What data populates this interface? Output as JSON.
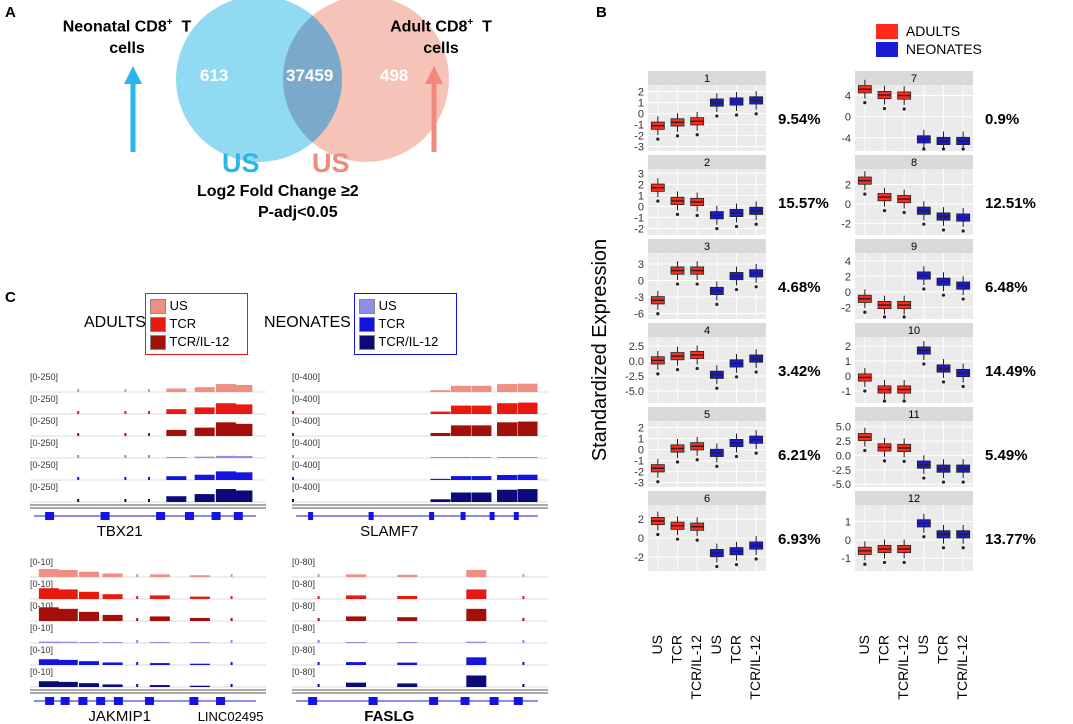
{
  "panels": {
    "a": "A",
    "b": "B",
    "c": "C"
  },
  "venn": {
    "left_label_line1": "Neonatal CD8",
    "left_label_sup": "+",
    "left_label_t": "T",
    "left_label_line2": "cells",
    "right_label_line1": "Adult CD8",
    "right_label_sup": "+",
    "right_label_t": "T",
    "right_label_line2": "cells",
    "left_only": "613",
    "overlap": "37459",
    "right_only": "498",
    "left_condition": "US",
    "right_condition": "US",
    "criteria_line1": "Log2 Fold Change ≥2",
    "criteria_line2": "P-adj<0.05",
    "colors": {
      "left": "#7dd3f0",
      "right": "#f5b8ad",
      "overlap": "#7aa9c9",
      "left_text": "#29b6e8",
      "right_text": "#f08a7c"
    }
  },
  "legend_b": {
    "adults": "ADULTS",
    "neonates": "NEONATES",
    "adults_color": "#ff2a1a",
    "neonates_color": "#1a1ad6"
  },
  "ylabel": "Standardized Expression",
  "x_categories": [
    "US",
    "TCR",
    "TCR/IL-12",
    "US",
    "TCR",
    "TCR/IL-12"
  ],
  "clusters": [
    {
      "id": "1",
      "pct": "9.54%",
      "yticks": [
        "2",
        "1",
        "0",
        "-1",
        "-2",
        "-3"
      ],
      "yrange": [
        2.6,
        -3.4
      ],
      "medians": [
        -1.1,
        -0.8,
        -0.7,
        1.0,
        1.1,
        1.2
      ]
    },
    {
      "id": "2",
      "pct": "15.57%",
      "yticks": [
        "3",
        "2",
        "1",
        "0",
        "-1",
        "-2"
      ],
      "yrange": [
        3.4,
        -2.6
      ],
      "medians": [
        1.7,
        0.5,
        0.4,
        -0.8,
        -0.6,
        -0.4
      ]
    },
    {
      "id": "3",
      "pct": "4.68%",
      "yticks": [
        "3",
        "0",
        "-3",
        "-6"
      ],
      "yrange": [
        5.0,
        -7.0
      ],
      "medians": [
        -3.6,
        1.8,
        1.8,
        -1.9,
        0.8,
        1.3
      ]
    },
    {
      "id": "4",
      "pct": "3.42%",
      "yticks": [
        "2.5",
        "0.0",
        "-2.5",
        "-5.0"
      ],
      "yrange": [
        4.0,
        -7.0
      ],
      "medians": [
        0.1,
        0.8,
        1.0,
        -2.3,
        -0.4,
        0.4
      ]
    },
    {
      "id": "5",
      "pct": "6.21%",
      "yticks": [
        "2",
        "1",
        "0",
        "-1",
        "-2",
        "-3"
      ],
      "yrange": [
        2.6,
        -3.4
      ],
      "medians": [
        -1.7,
        0.1,
        0.3,
        -0.3,
        0.6,
        0.9
      ]
    },
    {
      "id": "6",
      "pct": "6.93%",
      "yticks": [
        "2",
        "0",
        "-2"
      ],
      "yrange": [
        3.5,
        -3.5
      ],
      "medians": [
        1.8,
        1.3,
        1.2,
        -1.6,
        -1.4,
        -0.8
      ]
    },
    {
      "id": "7",
      "pct": "0.9%",
      "yticks": [
        "4",
        "0",
        "-4"
      ],
      "yrange": [
        6.0,
        -6.5
      ],
      "medians": [
        5.2,
        4.1,
        4.0,
        -4.3,
        -4.6,
        -4.6
      ]
    },
    {
      "id": "8",
      "pct": "12.51%",
      "yticks": [
        "2",
        "0",
        "-2"
      ],
      "yrange": [
        3.6,
        -3.2
      ],
      "medians": [
        2.4,
        0.7,
        0.5,
        -0.7,
        -1.3,
        -1.4
      ]
    },
    {
      "id": "9",
      "pct": "6.48%",
      "yticks": [
        "4",
        "2",
        "0",
        "-2"
      ],
      "yrange": [
        5.0,
        -3.5
      ],
      "medians": [
        -0.9,
        -1.7,
        -1.7,
        2.1,
        1.3,
        0.8
      ]
    },
    {
      "id": "10",
      "pct": "14.49%",
      "yticks": [
        "2",
        "1",
        "0",
        "-1"
      ],
      "yrange": [
        2.6,
        -1.8
      ],
      "medians": [
        -0.1,
        -0.9,
        -0.9,
        1.7,
        0.5,
        0.2
      ]
    },
    {
      "id": "11",
      "pct": "5.49%",
      "yticks": [
        "5.0",
        "2.5",
        "0.0",
        "-2.5",
        "-5.0"
      ],
      "yrange": [
        6.0,
        -5.5
      ],
      "medians": [
        3.2,
        1.4,
        1.3,
        -1.6,
        -2.3,
        -2.3
      ]
    },
    {
      "id": "12",
      "pct": "13.77%",
      "yticks": [
        "1",
        "0",
        "-1"
      ],
      "yrange": [
        1.9,
        -1.7
      ],
      "medians": [
        -0.6,
        -0.5,
        -0.5,
        0.9,
        0.3,
        0.3
      ]
    }
  ],
  "legend_c": {
    "adults_title": "ADULTS",
    "neonates_title": "NEONATES",
    "adult_items": [
      "US",
      "TCR",
      "TCR/IL-12"
    ],
    "neonate_items": [
      "US",
      "TCR",
      "TCR/IL-12"
    ],
    "adult_colors": [
      "#f08e84",
      "#e8190e",
      "#a30f0a"
    ],
    "neonate_colors": [
      "#8e8ee8",
      "#1414e0",
      "#0a0a7a"
    ]
  },
  "tracks": [
    {
      "gene": "TBX21",
      "gene2": "",
      "range": "[0-250]"
    },
    {
      "gene": "SLAMF7",
      "gene2": "",
      "range": "[0-400]"
    },
    {
      "gene": "JAKMIP1",
      "gene2": "LINC02495",
      "range": "[0-10]"
    },
    {
      "gene": "FASLG",
      "gene2": "",
      "range": "[0-80]"
    }
  ],
  "track_colors": [
    "#f08e84",
    "#e8190e",
    "#a30f0a",
    "#8e8ee8",
    "#1414e0",
    "#0a0a7a"
  ]
}
